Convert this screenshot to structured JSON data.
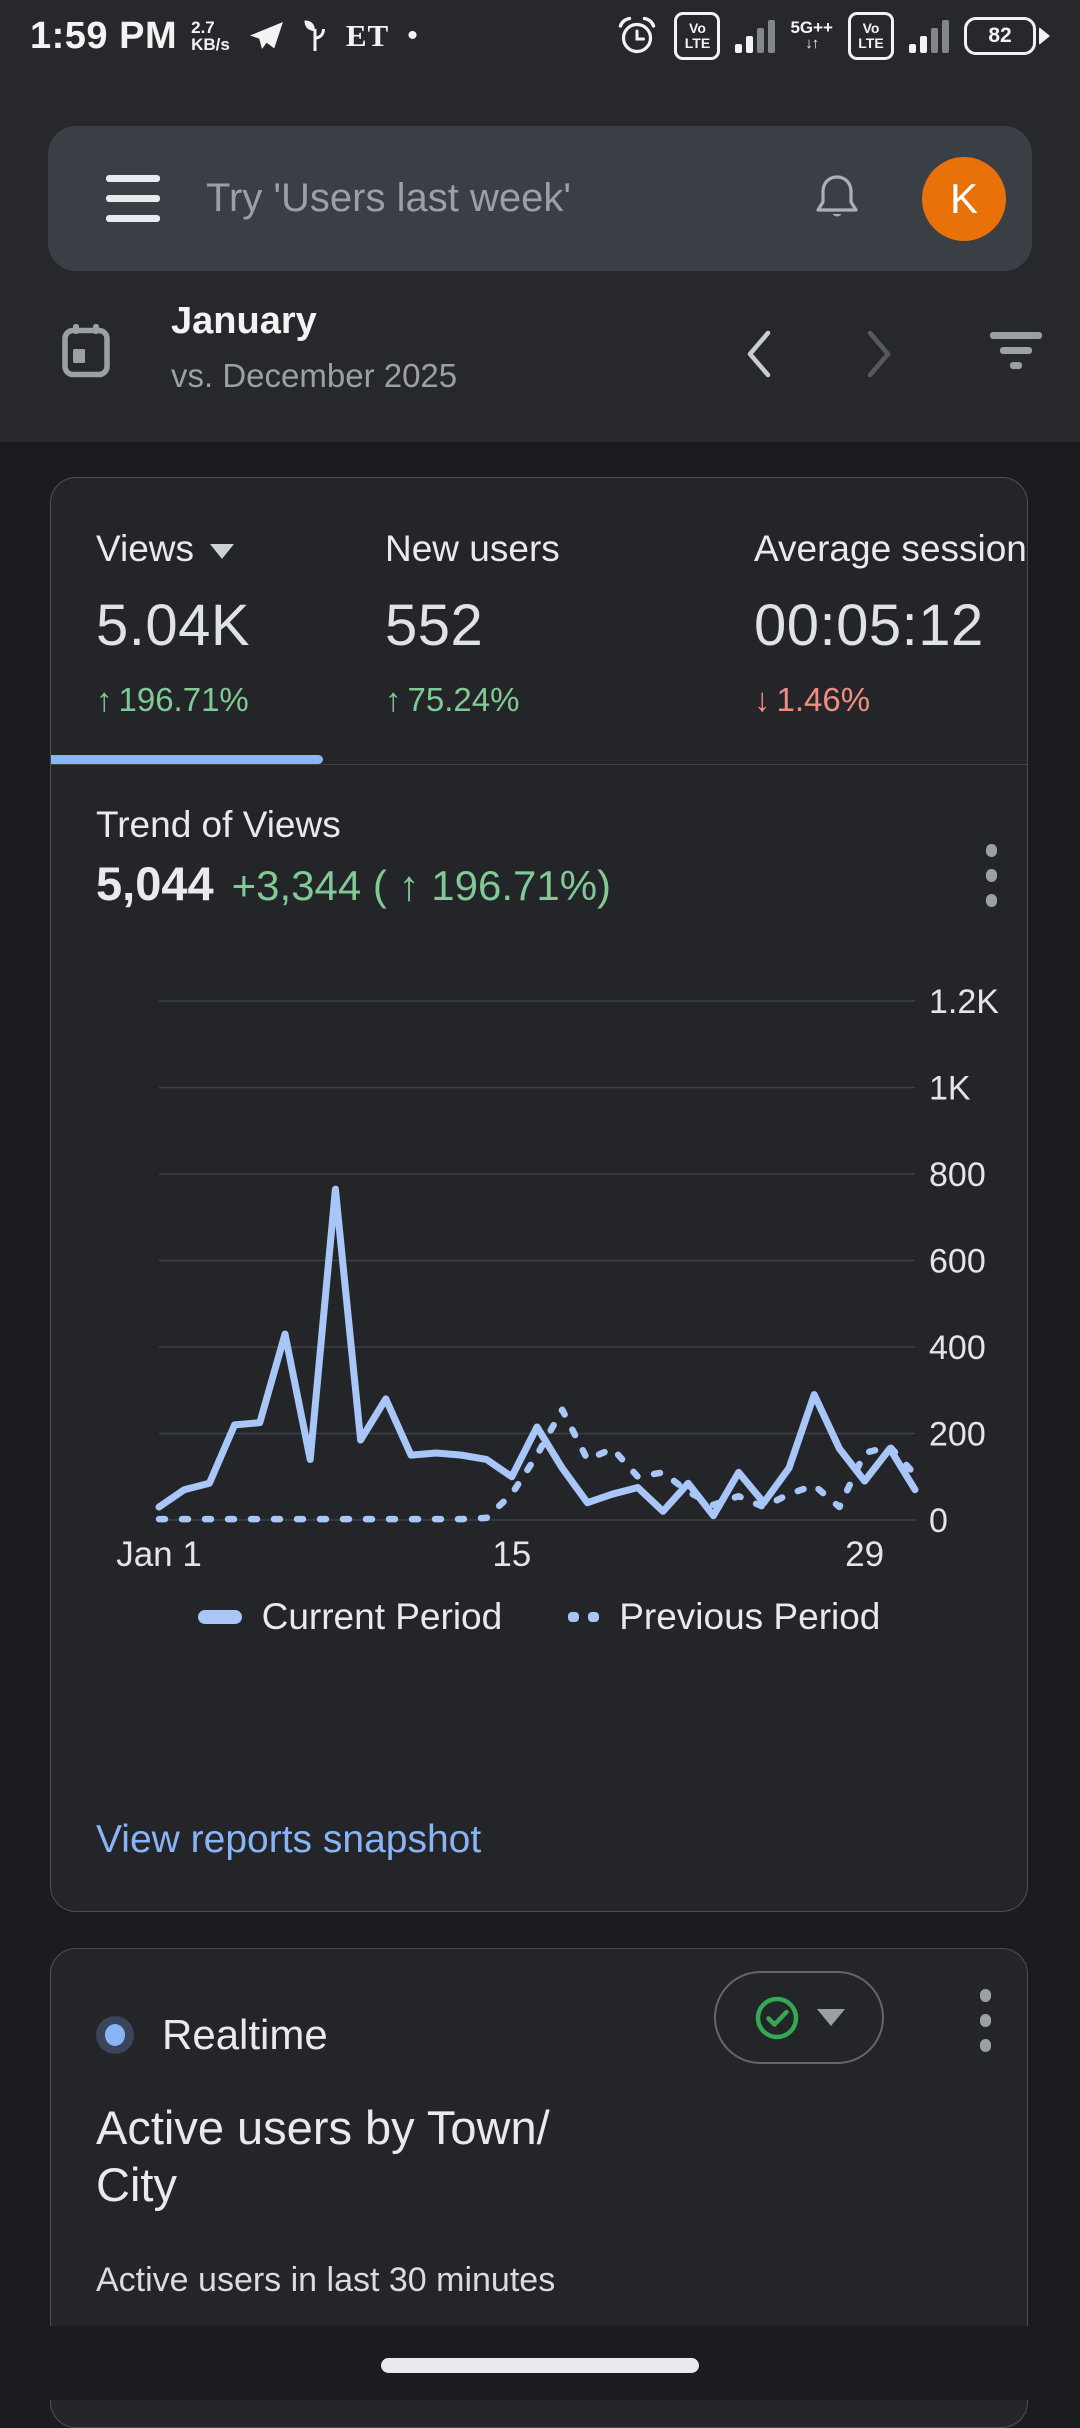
{
  "status_bar": {
    "time": "1:59 PM",
    "net_speed_value": "2.7",
    "net_speed_unit": "KB/s",
    "carrier_letters": "ET",
    "notification_dot": "•",
    "volte_line1": "Vo",
    "volte_line2": "LTE",
    "network_type": "5G++",
    "network_arrows": "↓↑",
    "battery_percent": "82"
  },
  "icons": {
    "status_left": [
      "telegram-paper-plane",
      "sprout",
      "serif-letters",
      "dot"
    ],
    "status_right": [
      "alarm-clock",
      "volte-badge",
      "signal-bars",
      "5g-arrows",
      "volte-badge",
      "signal-bars",
      "battery"
    ],
    "search": [
      "hamburger-menu",
      "bell",
      "avatar-circle"
    ],
    "date_row": [
      "calendar",
      "chevron-left",
      "chevron-right",
      "filter-bars"
    ],
    "cards": [
      "dropdown-caret",
      "kebab-menu",
      "realtime-pulse-dot",
      "check-circle"
    ]
  },
  "search_bar": {
    "placeholder": "Try 'Users last week'",
    "avatar_letter": "K"
  },
  "date_selector": {
    "period": "January",
    "comparison": "vs. December 2025"
  },
  "metrics": [
    {
      "label": "Views",
      "value": "5.04K",
      "arrow": "↑",
      "delta": "196.71%",
      "color": "#81c995"
    },
    {
      "label": "New users",
      "value": "552",
      "arrow": "↑",
      "delta": "75.24%",
      "color": "#81c995"
    },
    {
      "label": "Average session",
      "value": "00:05:12",
      "arrow": "↓",
      "delta": "1.46%",
      "color": "#f28b82"
    }
  ],
  "trend": {
    "title": "Trend of Views",
    "value": "5,044",
    "delta": "+3,344 ( ↑ 196.71%)"
  },
  "chart_data": {
    "type": "line",
    "title": "Trend of Views",
    "xlabel": "",
    "ylabel": "",
    "ylim": [
      0,
      1200
    ],
    "x_range_days": [
      1,
      31
    ],
    "grid": true,
    "legend_position": "bottom",
    "y_ticks": [
      {
        "label": "1.2K",
        "value": 1200
      },
      {
        "label": "1K",
        "value": 1000
      },
      {
        "label": "800",
        "value": 800
      },
      {
        "label": "600",
        "value": 600
      },
      {
        "label": "400",
        "value": 400
      },
      {
        "label": "200",
        "value": 200
      },
      {
        "label": "0",
        "value": 0
      }
    ],
    "x_ticks": [
      {
        "label": "Jan 1",
        "day": 1
      },
      {
        "label": "15",
        "day": 15
      },
      {
        "label": "29",
        "day": 29
      }
    ],
    "series": [
      {
        "name": "Current Period",
        "line_style": "solid",
        "values": [
          30,
          70,
          85,
          220,
          225,
          430,
          140,
          765,
          185,
          280,
          150,
          155,
          150,
          140,
          100,
          215,
          120,
          40,
          60,
          75,
          20,
          85,
          10,
          110,
          40,
          120,
          290,
          165,
          90,
          165,
          70
        ]
      },
      {
        "name": "Previous Period",
        "line_style": "dashed",
        "values": [
          2,
          2,
          2,
          2,
          2,
          2,
          2,
          2,
          2,
          2,
          2,
          2,
          2,
          5,
          60,
          150,
          255,
          140,
          165,
          100,
          110,
          65,
          35,
          55,
          30,
          60,
          80,
          30,
          155,
          170,
          105
        ]
      }
    ]
  },
  "links": {
    "view_reports_snapshot": "View reports snapshot"
  },
  "realtime": {
    "label": "Realtime",
    "title_line1": "Active users by Town/",
    "title_line2": "City",
    "subtitle": "Active users in last 30 minutes"
  },
  "colors": {
    "accent_blue": "#8ab4f8",
    "chart_line_blue": "#a8c6f8",
    "positive_green": "#81c995",
    "negative_red": "#f28b82",
    "realtime_check_green": "#34a853",
    "avatar_orange": "#e8710a"
  }
}
